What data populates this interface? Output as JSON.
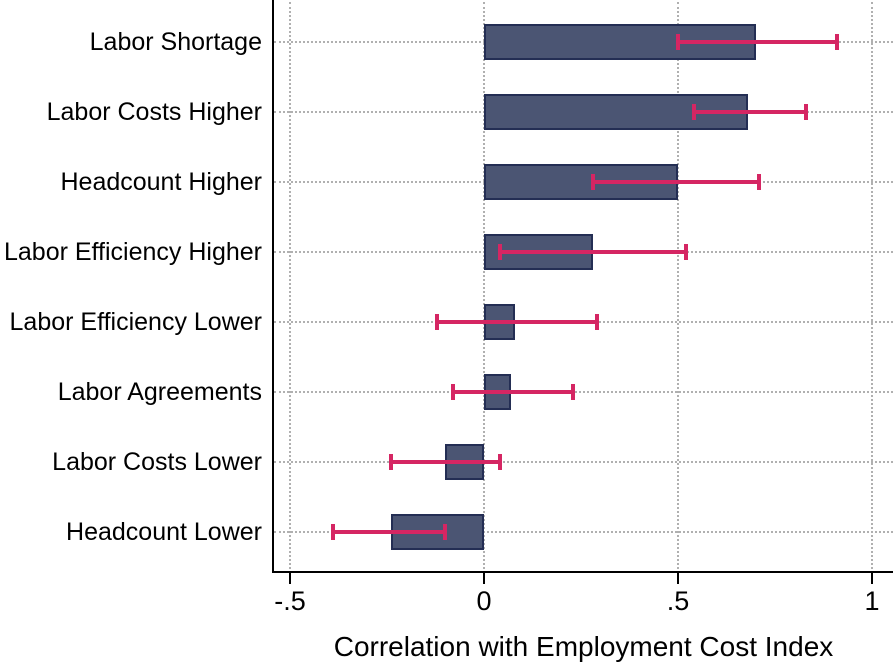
{
  "chart_data": {
    "type": "bar",
    "orientation": "horizontal",
    "title": "",
    "xlabel": "Correlation with Employment Cost Index",
    "ylabel": "",
    "categories": [
      "Labor Shortage",
      "Labor Costs Higher",
      "Headcount Higher",
      "Labor Efficiency Higher",
      "Labor Efficiency Lower",
      "Labor Agreements",
      "Labor Costs Lower",
      "Headcount Lower"
    ],
    "values": [
      0.7,
      0.68,
      0.5,
      0.28,
      0.08,
      0.07,
      -0.1,
      -0.24
    ],
    "error_bars": {
      "low": [
        0.5,
        0.54,
        0.28,
        0.04,
        -0.12,
        -0.08,
        -0.24,
        -0.39
      ],
      "high": [
        0.91,
        0.83,
        0.71,
        0.52,
        0.29,
        0.23,
        0.04,
        -0.1
      ]
    },
    "x_ticks": [
      -0.5,
      0,
      0.5,
      1
    ],
    "x_tick_labels": [
      "-.5",
      "0",
      ".5",
      "1"
    ],
    "xlim": [
      -0.54,
      1.05
    ],
    "grid": "dotted-both-axes",
    "legend": "none",
    "colors": {
      "bar_fill": "#4b5573",
      "bar_border": "#242e54",
      "error_bar": "#d52663",
      "grid": "#b0b0b0",
      "axis": "#000000",
      "background": "#ffffff"
    }
  }
}
